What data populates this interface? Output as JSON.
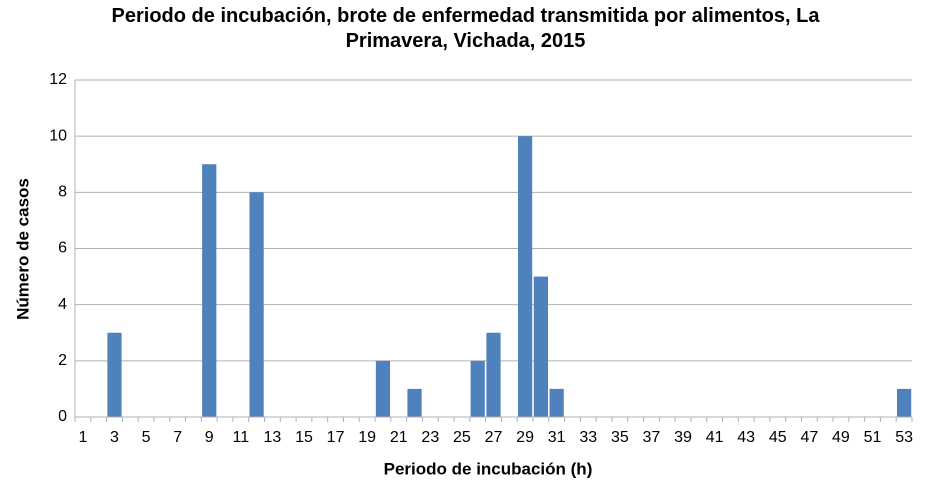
{
  "chart_data": {
    "type": "bar",
    "title": "Periodo de incubación, brote de enfermedad transmitida por alimentos, La Primavera, Vichada, 2015",
    "x_label": "Periodo de incubación (h)",
    "y_label": "Número de casos",
    "categories": [
      1,
      null,
      3,
      null,
      5,
      null,
      7,
      null,
      9,
      null,
      11,
      null,
      13,
      null,
      15,
      null,
      17,
      null,
      19,
      null,
      21,
      null,
      23,
      null,
      25,
      null,
      27,
      null,
      29,
      null,
      31,
      null,
      33,
      null,
      35,
      null,
      37,
      null,
      39,
      null,
      41,
      null,
      43,
      null,
      45,
      null,
      47,
      null,
      49,
      null,
      51,
      null,
      53
    ],
    "values": [
      0,
      0,
      3,
      0,
      0,
      0,
      0,
      0,
      9,
      0,
      0,
      8,
      0,
      0,
      0,
      0,
      0,
      0,
      0,
      2,
      0,
      1,
      0,
      0,
      0,
      2,
      3,
      0,
      10,
      5,
      1,
      0,
      0,
      0,
      0,
      0,
      0,
      0,
      0,
      0,
      0,
      0,
      0,
      0,
      0,
      0,
      0,
      0,
      0,
      0,
      0,
      0,
      1
    ],
    "color": "#4f81bd",
    "ylim": [
      0,
      12
    ],
    "yticks": [
      0,
      2,
      4,
      6,
      8,
      10,
      12
    ],
    "grid": true
  }
}
